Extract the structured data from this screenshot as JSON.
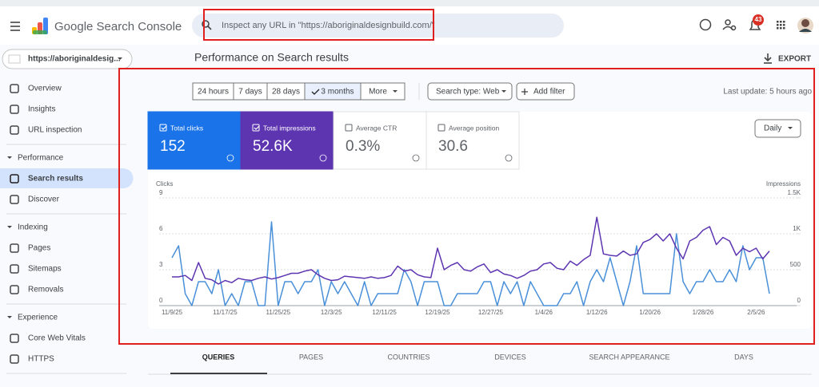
{
  "header": {
    "product": "Google Search Console",
    "search_placeholder": "Inspect any URL in \"https://aboriginaldesignbuild.com/\"",
    "notification_count": "43"
  },
  "sidebar": {
    "property": "https://aboriginaldesig...",
    "top_items": [
      "Overview",
      "Insights",
      "URL inspection"
    ],
    "sections": [
      {
        "title": "Performance",
        "items": [
          "Search results",
          "Discover"
        ]
      },
      {
        "title": "Indexing",
        "items": [
          "Pages",
          "Sitemaps",
          "Removals"
        ]
      },
      {
        "title": "Experience",
        "items": [
          "Core Web Vitals",
          "HTTPS"
        ]
      }
    ],
    "selected": [
      0,
      0
    ]
  },
  "main": {
    "title": "Performance on Search results",
    "export": "EXPORT",
    "date_ranges": [
      "24 hours",
      "7 days",
      "28 days",
      "3 months",
      "More"
    ],
    "selected_range": 3,
    "search_type": "Search type: Web",
    "add_filter": "Add filter",
    "last_update": "Last update: 5 hours ago",
    "metrics": [
      {
        "label": "Total clicks",
        "value": 152,
        "color": "#1a73e8",
        "selected": true
      },
      {
        "label": "Total impressions",
        "value": "52.6K",
        "color": "#5e35b1",
        "selected": true
      },
      {
        "label": "Average CTR",
        "value": "0.3%",
        "color": "#00897b",
        "selected": false
      },
      {
        "label": "Average position",
        "value": 30.6,
        "color": "#e8710a",
        "selected": false
      }
    ],
    "granularity": "Daily",
    "tabs": [
      "QUERIES",
      "PAGES",
      "COUNTRIES",
      "DEVICES",
      "SEARCH APPEARANCE",
      "DAYS"
    ],
    "selected_tab": 0
  },
  "chart_data": {
    "type": "line",
    "y_label": "Clicks",
    "y2_label": "Impressions",
    "categories": [
      "11/9/25",
      null,
      null,
      null,
      null,
      null,
      null,
      null,
      "11/17/25",
      null,
      null,
      null,
      null,
      null,
      null,
      null,
      "11/25/25",
      null,
      null,
      null,
      null,
      null,
      null,
      null,
      "12/3/25",
      null,
      null,
      null,
      null,
      null,
      null,
      null,
      "12/11/25",
      null,
      null,
      null,
      null,
      null,
      null,
      null,
      "12/19/25",
      null,
      null,
      null,
      null,
      null,
      null,
      null,
      "12/27/25",
      null,
      null,
      null,
      null,
      null,
      null,
      null,
      "1/4/26",
      null,
      null,
      null,
      null,
      null,
      null,
      null,
      "1/12/26",
      null,
      null,
      null,
      null,
      null,
      null,
      null,
      "1/20/26",
      null,
      null,
      null,
      null,
      null,
      null,
      null,
      "1/28/26",
      null,
      null,
      null,
      null,
      null,
      null,
      null,
      "2/5/26",
      null,
      null
    ],
    "series": [
      {
        "color": "#4a90d9",
        "axis": "y",
        "values": [
          4,
          5,
          1,
          0,
          2,
          2,
          1,
          3,
          0,
          1,
          0,
          2,
          2,
          0,
          0,
          7,
          0,
          2,
          2,
          1,
          2,
          2,
          3,
          0,
          2,
          1,
          2,
          1,
          0,
          2,
          0,
          1,
          1,
          1,
          1,
          3,
          2,
          0,
          2,
          2,
          2,
          0,
          0,
          1,
          1,
          1,
          1,
          2,
          2,
          0,
          2,
          1,
          2,
          0,
          2,
          1,
          0,
          0,
          0,
          1,
          1,
          2,
          0,
          2,
          3,
          2,
          4,
          2,
          0,
          2,
          5,
          1,
          1,
          1,
          1,
          1,
          6,
          2,
          1,
          2,
          2,
          3,
          2,
          2,
          3,
          2,
          5,
          3,
          4,
          4,
          1
        ]
      },
      {
        "color": "#5e35b1",
        "axis": "y2",
        "values": [
          400,
          400,
          420,
          350,
          600,
          380,
          360,
          300,
          350,
          320,
          380,
          360,
          350,
          380,
          400,
          370,
          390,
          420,
          450,
          450,
          480,
          500,
          430,
          380,
          350,
          360,
          410,
          400,
          390,
          380,
          400,
          380,
          390,
          420,
          550,
          480,
          500,
          430,
          400,
          390,
          800,
          500,
          560,
          600,
          500,
          480,
          540,
          580,
          460,
          500,
          440,
          420,
          380,
          420,
          480,
          500,
          580,
          600,
          520,
          500,
          620,
          560,
          640,
          700,
          1230,
          720,
          700,
          690,
          760,
          700,
          720,
          880,
          920,
          1000,
          900,
          1000,
          800,
          650,
          900,
          950,
          1050,
          1100,
          850,
          950,
          900,
          700,
          800,
          750,
          800,
          650,
          760
        ]
      }
    ],
    "ylim": [
      0,
      9
    ],
    "yticks": [
      0,
      3,
      6,
      9
    ],
    "y2lim": [
      0,
      1500
    ],
    "y2ticks": [
      0,
      500,
      {
        "value": 1000,
        "label": "1K"
      },
      {
        "value": 1500,
        "label": "1.5K"
      }
    ],
    "grid": true
  }
}
